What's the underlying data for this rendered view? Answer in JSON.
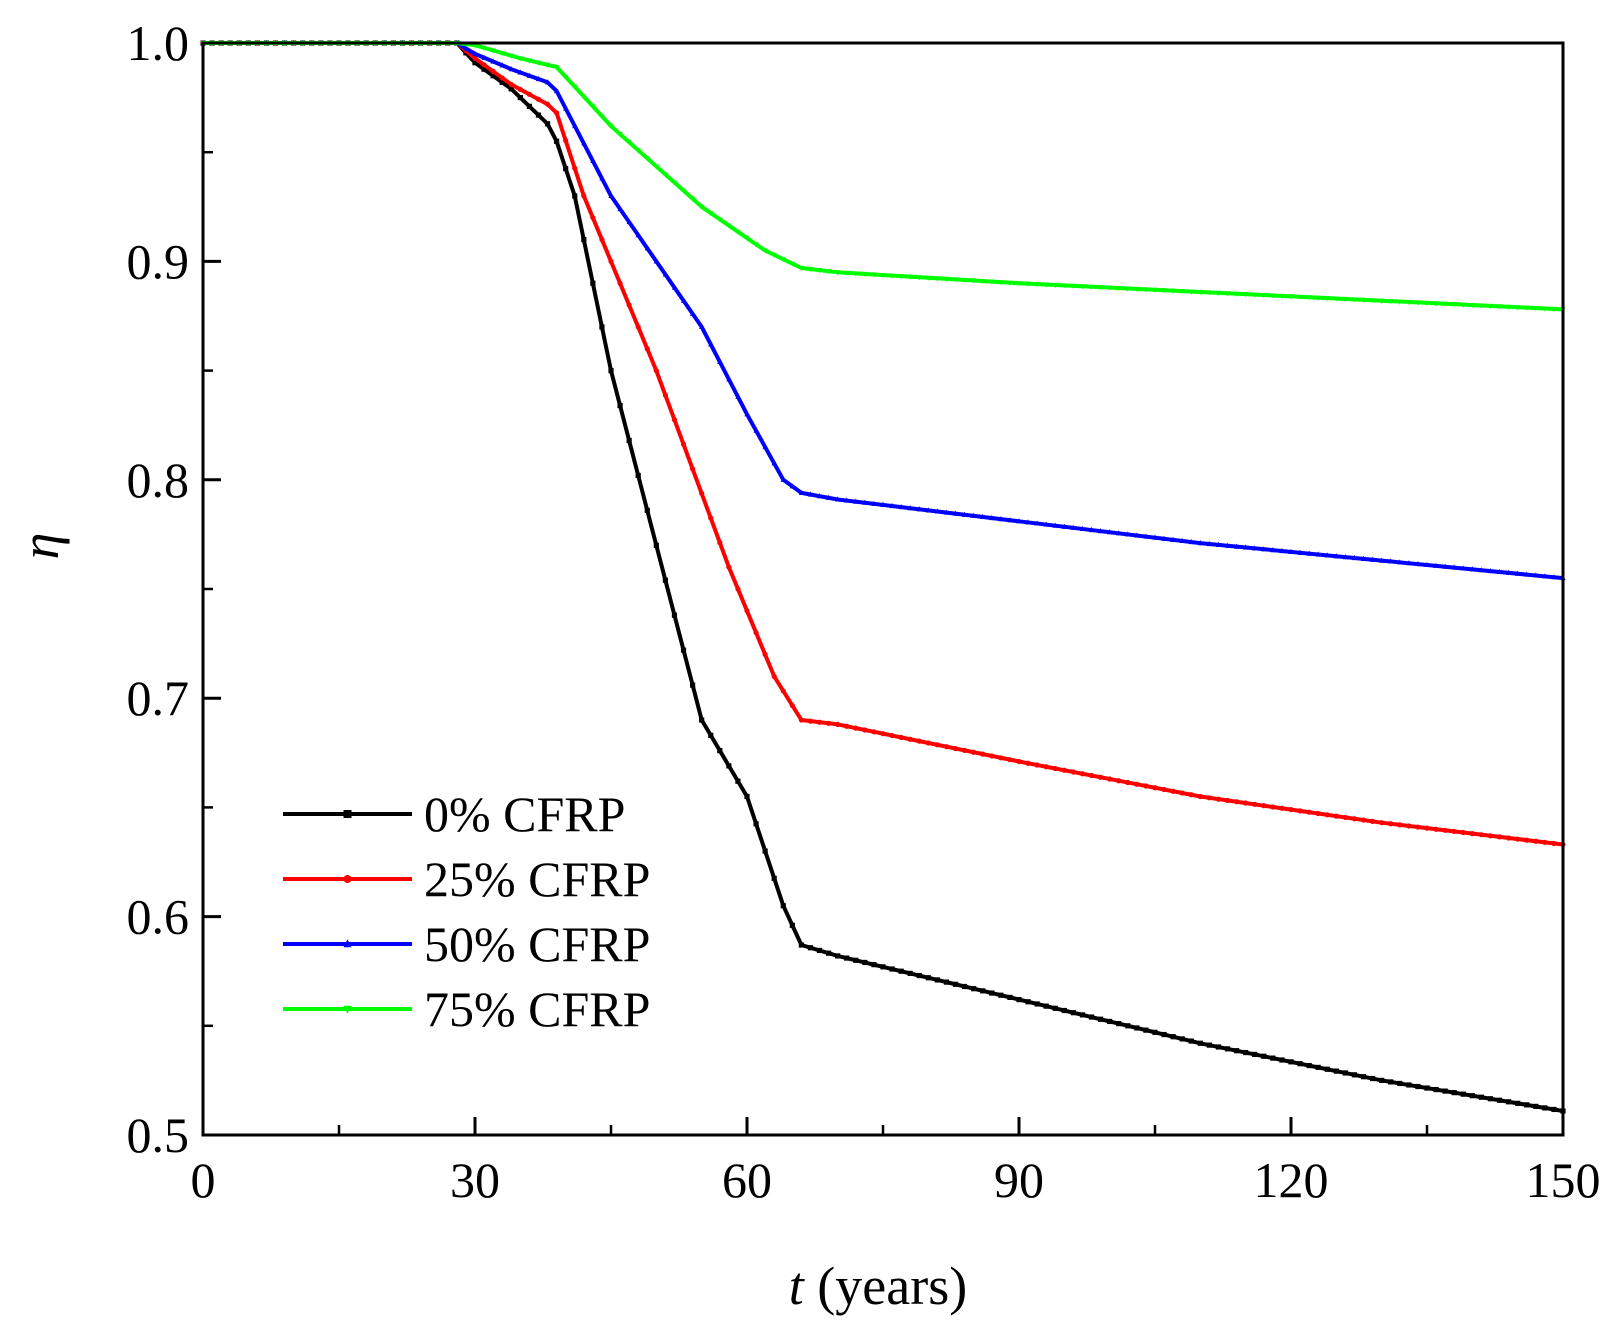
{
  "chart_data": {
    "type": "line",
    "title": "",
    "xlabel_var": "t",
    "xlabel_rest": " (years)",
    "ylabel": "η",
    "xlim": [
      0,
      150
    ],
    "ylim": [
      0.5,
      1.0
    ],
    "x_ticks": [
      0,
      30,
      60,
      90,
      120,
      150
    ],
    "x_tick_labels": [
      "0",
      "30",
      "60",
      "90",
      "120",
      "150"
    ],
    "y_ticks": [
      0.5,
      0.6,
      0.7,
      0.8,
      0.9,
      1.0
    ],
    "y_tick_labels": [
      "0.5",
      "0.6",
      "0.7",
      "0.8",
      "0.9",
      "1.0"
    ],
    "legend_position": "bottom-left",
    "series": [
      {
        "name": "0% CFRP",
        "color": "#000000",
        "marker": "square",
        "points": [
          [
            0,
            1.0
          ],
          [
            28,
            1.0
          ],
          [
            30,
            0.991
          ],
          [
            34,
            0.979
          ],
          [
            38,
            0.963
          ],
          [
            39,
            0.955
          ],
          [
            41,
            0.93
          ],
          [
            45,
            0.85
          ],
          [
            50,
            0.77
          ],
          [
            55,
            0.69
          ],
          [
            60,
            0.655
          ],
          [
            64,
            0.605
          ],
          [
            66,
            0.587
          ],
          [
            70,
            0.582
          ],
          [
            90,
            0.562
          ],
          [
            110,
            0.542
          ],
          [
            130,
            0.525
          ],
          [
            150,
            0.511
          ]
        ]
      },
      {
        "name": "25% CFRP",
        "color": "#ff0000",
        "marker": "circle",
        "points": [
          [
            0,
            1.0
          ],
          [
            28,
            1.0
          ],
          [
            30,
            0.993
          ],
          [
            34,
            0.981
          ],
          [
            38,
            0.972
          ],
          [
            39,
            0.968
          ],
          [
            42,
            0.93
          ],
          [
            50,
            0.85
          ],
          [
            58,
            0.76
          ],
          [
            63,
            0.71
          ],
          [
            66,
            0.69
          ],
          [
            70,
            0.688
          ],
          [
            90,
            0.671
          ],
          [
            110,
            0.655
          ],
          [
            130,
            0.643
          ],
          [
            150,
            0.633
          ]
        ]
      },
      {
        "name": "50% CFRP",
        "color": "#0000ff",
        "marker": "triangle-up",
        "points": [
          [
            0,
            1.0
          ],
          [
            28,
            1.0
          ],
          [
            30,
            0.995
          ],
          [
            34,
            0.988
          ],
          [
            38,
            0.982
          ],
          [
            39,
            0.978
          ],
          [
            45,
            0.93
          ],
          [
            55,
            0.87
          ],
          [
            60,
            0.83
          ],
          [
            64,
            0.8
          ],
          [
            66,
            0.794
          ],
          [
            70,
            0.791
          ],
          [
            90,
            0.781
          ],
          [
            110,
            0.771
          ],
          [
            130,
            0.763
          ],
          [
            150,
            0.755
          ]
        ]
      },
      {
        "name": "75% CFRP",
        "color": "#00ff00",
        "marker": "triangle-down",
        "points": [
          [
            0,
            1.0
          ],
          [
            28,
            1.0
          ],
          [
            30,
            0.999
          ],
          [
            35,
            0.993
          ],
          [
            39,
            0.989
          ],
          [
            45,
            0.962
          ],
          [
            55,
            0.925
          ],
          [
            62,
            0.905
          ],
          [
            66,
            0.897
          ],
          [
            70,
            0.895
          ],
          [
            90,
            0.89
          ],
          [
            110,
            0.886
          ],
          [
            130,
            0.882
          ],
          [
            150,
            0.878
          ]
        ]
      }
    ]
  }
}
